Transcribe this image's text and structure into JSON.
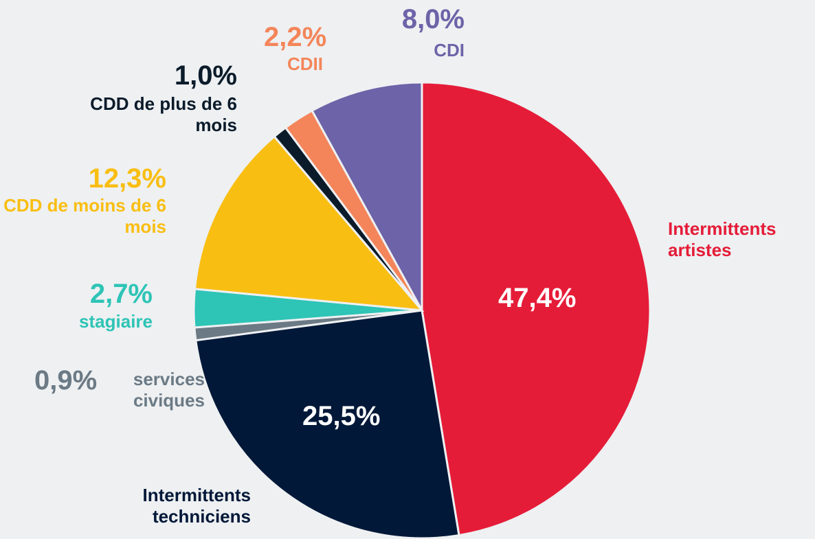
{
  "chart_data": {
    "type": "pie",
    "categories": [
      "Intermittents artistes",
      "Intermittents techniciens",
      "services civiques",
      "stagiaire",
      "CDD de moins de 6 mois",
      "CDD de plus de 6 mois",
      "CDII",
      "CDI"
    ],
    "values": [
      47.4,
      25.5,
      0.9,
      2.7,
      12.3,
      1.0,
      2.2,
      8.0
    ],
    "value_labels": [
      "47,4%",
      "25,5%",
      "0,9%",
      "2,7%",
      "12,3%",
      "1,0%",
      "2,2%",
      "8,0%"
    ],
    "colors": [
      "#e51c38",
      "#011838",
      "#6b7a85",
      "#2ec4b6",
      "#f9be12",
      "#0b1b2a",
      "#f4855a",
      "#6c63a8"
    ]
  }
}
